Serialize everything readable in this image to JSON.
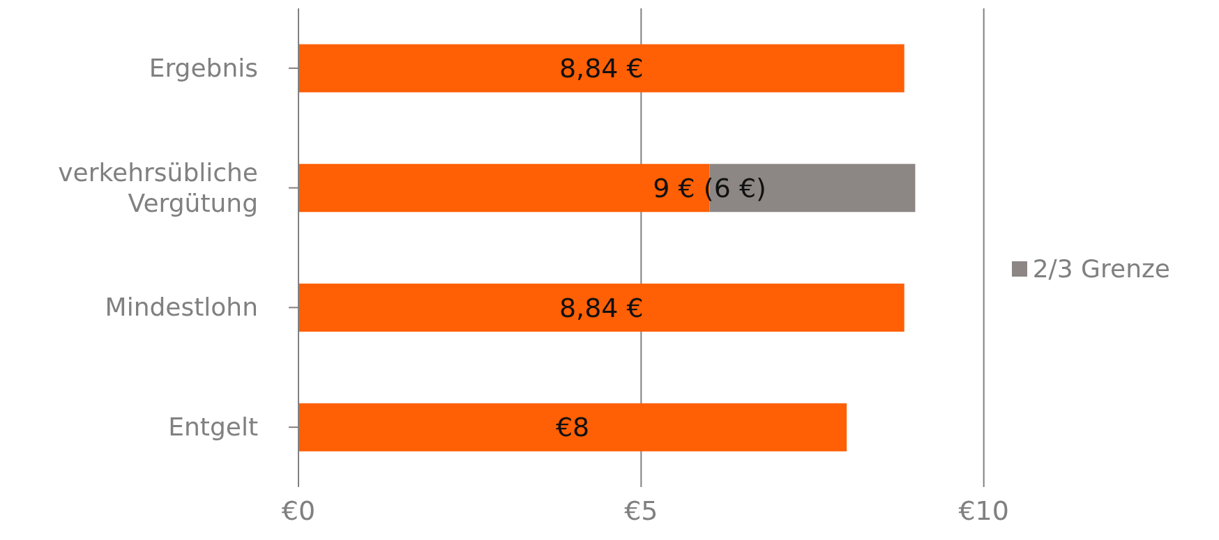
{
  "chart_data": {
    "type": "bar",
    "orientation": "horizontal",
    "stacked": true,
    "categories": [
      "Ergebnis",
      "verkehrsübliche Vergütung",
      "Mindestlohn",
      "Entgelt"
    ],
    "series": [
      {
        "color": "#ff5f05",
        "values": [
          8.84,
          6,
          8.84,
          8
        ],
        "value_labels": [
          "8,84 €",
          null,
          "8,84 €",
          "€8"
        ]
      },
      {
        "name": "2/3 Grenze",
        "color": "#8c8784",
        "values": [
          null,
          3,
          null,
          null
        ]
      }
    ],
    "annotations": [
      {
        "text": "9 € (6 €)",
        "x": 6,
        "y": "verkehrsübliche Vergütung"
      }
    ],
    "xlim": [
      0,
      10
    ],
    "xticks": [
      {
        "value": 0,
        "label": "€0"
      },
      {
        "value": 5,
        "label": "€5"
      },
      {
        "value": 10,
        "label": "€10"
      }
    ],
    "grid": "x",
    "legend": "right"
  }
}
